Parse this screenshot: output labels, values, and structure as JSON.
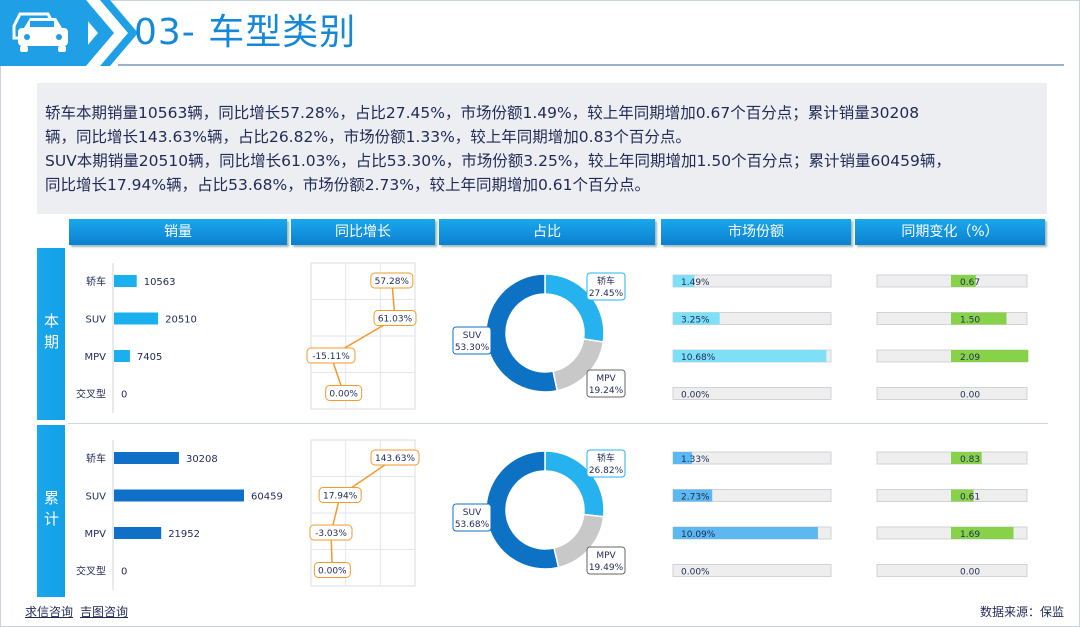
{
  "header": {
    "title": "03- 车型类别"
  },
  "summary": {
    "line1": "      轿车本期销量10563辆，同比增长57.28%，占比27.45%，市场份额1.49%，较上年同期增加0.67个百分点；累计销量30208",
    "line2": "辆，同比增长143.63%辆，占比26.82%，市场份额1.33%，较上年同期增加0.83个百分点。",
    "line3": "SUV本期销量20510辆，同比增长61.03%，占比53.30%，市场份额3.25%，较上年同期增加1.50个百分点；累计销量60459辆，",
    "line4": "同比增长17.94%辆，占比53.68%，市场份额2.73%，较上年同期增加0.61个百分点。"
  },
  "columns": {
    "sales": "销量",
    "yoy": "同比增长",
    "share": "占比",
    "market": "市场份额",
    "change": "同期变化（%）"
  },
  "rows": {
    "current": "本期",
    "cumulative": "累计"
  },
  "footer": {
    "link1": "求信咨询",
    "link2": "吉图咨询",
    "source": "数据来源：保监"
  },
  "colors": {
    "current_bar": "#1ab0ee",
    "cumulative_bar": "#1070c8",
    "donut_main": "#0d72c4",
    "donut_light": "#25b2ef",
    "donut_grey": "#c8c8c8",
    "market_fill": "#7ee0f6",
    "market_fill2": "#5cb8f0",
    "change_fill": "#88d24a",
    "line_color": "#f39a2b"
  },
  "chart_data": [
    {
      "type": "bar",
      "section": "本期",
      "title": "销量",
      "categories": [
        "轿车",
        "SUV",
        "MPV",
        "交叉型"
      ],
      "values": [
        10563,
        20510,
        7405,
        0
      ]
    },
    {
      "type": "line",
      "section": "本期",
      "title": "同比增长",
      "categories": [
        "轿车",
        "SUV",
        "MPV",
        "交叉型"
      ],
      "values": [
        57.28,
        61.03,
        -15.11,
        0.0
      ],
      "labels": [
        "57.28%",
        "61.03%",
        "-15.11%",
        "0.00%"
      ]
    },
    {
      "type": "pie",
      "section": "本期",
      "title": "占比",
      "categories": [
        "轿车",
        "SUV",
        "MPV"
      ],
      "values": [
        27.45,
        53.3,
        19.24
      ],
      "labels": [
        "27.45%",
        "53.30%",
        "19.24%"
      ]
    },
    {
      "type": "bar",
      "section": "本期",
      "title": "市场份额",
      "categories": [
        "轿车",
        "SUV",
        "MPV",
        "交叉型"
      ],
      "values": [
        1.49,
        3.25,
        10.68,
        0.0
      ],
      "labels": [
        "1.49%",
        "3.25%",
        "10.68%",
        "0.00%"
      ]
    },
    {
      "type": "bar",
      "section": "本期",
      "title": "同期变化（%）",
      "categories": [
        "轿车",
        "SUV",
        "MPV",
        "交叉型"
      ],
      "values": [
        0.67,
        1.5,
        2.09,
        0.0
      ],
      "labels": [
        "0.67",
        "1.50",
        "2.09",
        "0.00"
      ]
    },
    {
      "type": "bar",
      "section": "累计",
      "title": "销量",
      "categories": [
        "轿车",
        "SUV",
        "MPV",
        "交叉型"
      ],
      "values": [
        30208,
        60459,
        21952,
        0
      ]
    },
    {
      "type": "line",
      "section": "累计",
      "title": "同比增长",
      "categories": [
        "轿车",
        "SUV",
        "MPV",
        "交叉型"
      ],
      "values": [
        143.63,
        17.94,
        -3.03,
        0.0
      ],
      "labels": [
        "143.63%",
        "17.94%",
        "-3.03%",
        "0.00%"
      ]
    },
    {
      "type": "pie",
      "section": "累计",
      "title": "占比",
      "categories": [
        "轿车",
        "SUV",
        "MPV"
      ],
      "values": [
        26.82,
        53.68,
        19.49
      ],
      "labels": [
        "26.82%",
        "53.68%",
        "19.49%"
      ]
    },
    {
      "type": "bar",
      "section": "累计",
      "title": "市场份额",
      "categories": [
        "轿车",
        "SUV",
        "MPV",
        "交叉型"
      ],
      "values": [
        1.33,
        2.73,
        10.09,
        0.0
      ],
      "labels": [
        "1.33%",
        "2.73%",
        "10.09%",
        "0.00%"
      ]
    },
    {
      "type": "bar",
      "section": "累计",
      "title": "同期变化（%）",
      "categories": [
        "轿车",
        "SUV",
        "MPV",
        "交叉型"
      ],
      "values": [
        0.83,
        0.61,
        1.69,
        0.0
      ],
      "labels": [
        "0.83",
        "0.61",
        "1.69",
        "0.00"
      ]
    }
  ]
}
